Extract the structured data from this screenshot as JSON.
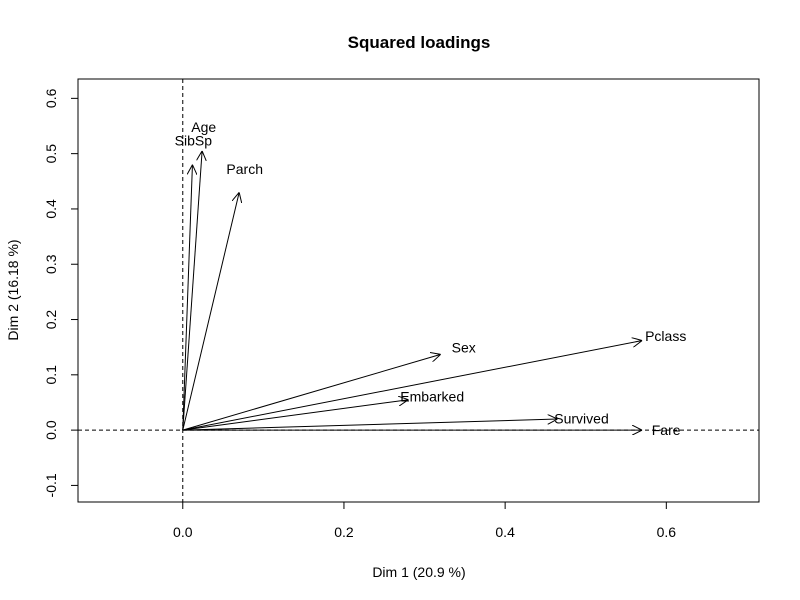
{
  "chart_data": {
    "type": "scatter",
    "title": "Squared loadings",
    "xlabel": "Dim 1 (20.9 %)",
    "ylabel": "Dim 2 (16.18 %)",
    "xlim": [
      -0.13,
      0.715
    ],
    "ylim": [
      -0.13,
      0.635
    ],
    "xticks": [
      0.0,
      0.2,
      0.4,
      0.6
    ],
    "xtick_labels": [
      "0.0",
      "0.2",
      "0.4",
      "0.6"
    ],
    "yticks": [
      -0.1,
      0.0,
      0.1,
      0.2,
      0.3,
      0.4,
      0.5,
      0.6
    ],
    "ytick_labels": [
      "-0.1",
      "0.0",
      "0.1",
      "0.2",
      "0.3",
      "0.4",
      "0.5",
      "0.6"
    ],
    "grid": false,
    "reference_lines": {
      "x": 0,
      "y": 0,
      "style": "dashed"
    },
    "arrows": [
      {
        "name": "Age",
        "x": 0.024,
        "y": 0.505
      },
      {
        "name": "SibSp",
        "x": 0.012,
        "y": 0.48
      },
      {
        "name": "Parch",
        "x": 0.07,
        "y": 0.43
      },
      {
        "name": "Sex",
        "x": 0.32,
        "y": 0.137
      },
      {
        "name": "Pclass",
        "x": 0.57,
        "y": 0.162
      },
      {
        "name": "Embarked",
        "x": 0.28,
        "y": 0.055
      },
      {
        "name": "Survived",
        "x": 0.465,
        "y": 0.02
      },
      {
        "name": "Fare",
        "x": 0.57,
        "y": 0.0
      }
    ]
  }
}
